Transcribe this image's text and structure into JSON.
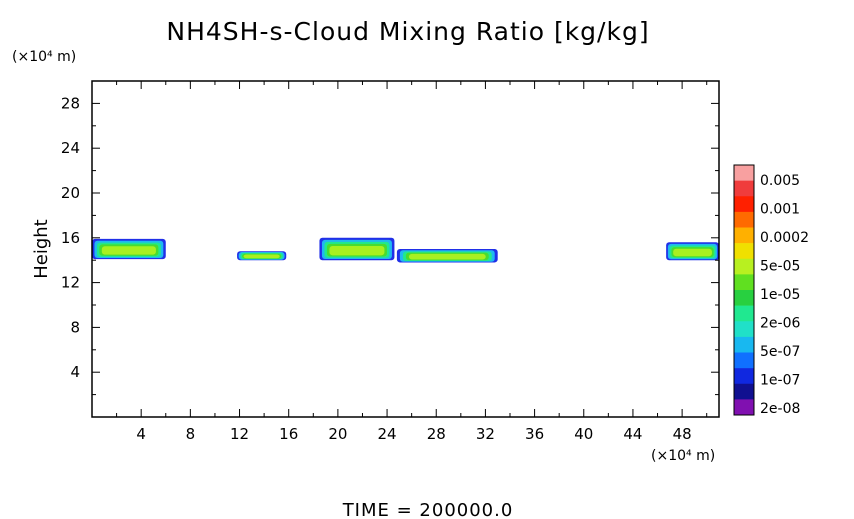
{
  "chart_data": {
    "type": "heatmap",
    "title": "NH4SH-s-Cloud Mixing Ratio [kg/kg]",
    "ylabel": "Height",
    "x_unit": "(×10⁴ m)",
    "y_unit": "(×10⁴ m)",
    "xlim": [
      0,
      51
    ],
    "ylim": [
      0,
      30
    ],
    "x_ticks": [
      4,
      8,
      12,
      16,
      20,
      24,
      28,
      32,
      36,
      40,
      44,
      48
    ],
    "y_ticks": [
      4,
      8,
      12,
      16,
      20,
      24,
      28
    ],
    "colorbar": {
      "labels": [
        "0.005",
        "0.001",
        "0.0002",
        "5e-05",
        "1e-05",
        "2e-06",
        "5e-07",
        "1e-07",
        "2e-08"
      ],
      "colors": [
        "#f8a0a0",
        "#f03c3c",
        "#ff2000",
        "#ff6a00",
        "#ffb000",
        "#f0e000",
        "#b8f020",
        "#60e020",
        "#28d040",
        "#20e890",
        "#20e0c8",
        "#18b8f0",
        "#1070ff",
        "#1028e0",
        "#101090",
        "#8010b0"
      ]
    },
    "regions": [
      {
        "x": [
          0,
          6
        ],
        "y": [
          14.1,
          15.9
        ],
        "levels": [
          "1e-07",
          "5e-05"
        ]
      },
      {
        "x": [
          11.8,
          15.8
        ],
        "y": [
          14.0,
          14.8
        ],
        "levels": [
          "5e-07",
          "5e-05"
        ]
      },
      {
        "x": [
          18.5,
          24.6
        ],
        "y": [
          14.0,
          16.0
        ],
        "levels": [
          "1e-07",
          "5e-05"
        ]
      },
      {
        "x": [
          24.8,
          33.0
        ],
        "y": [
          13.8,
          15.0
        ],
        "levels": [
          "5e-07",
          "5e-05"
        ]
      },
      {
        "x": [
          46.7,
          51
        ],
        "y": [
          14.0,
          15.6
        ],
        "levels": [
          "1e-07",
          "5e-05"
        ]
      }
    ],
    "footer": "TIME = 200000.0"
  }
}
